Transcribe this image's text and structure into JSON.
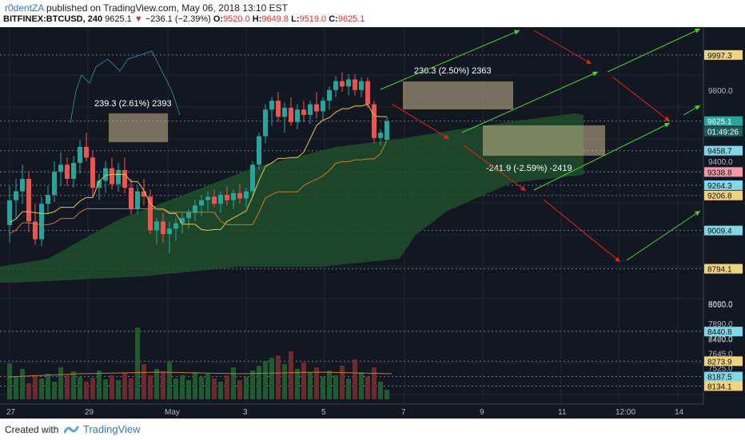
{
  "header": {
    "author": "r0dentZA",
    "published_text": " published on TradingView.com, May 06, 2018 13:10 EST",
    "symbol": "BITFINEX:BTCUSD, 240",
    "last_price": "9625.1",
    "change_arrow": "▼",
    "change": "−236.1 (−2.39%)",
    "o_label": "O:",
    "o_value": "9520.0",
    "h_label": "H:",
    "h_value": "9649.8",
    "l_label": "L:",
    "l_value": "9519.0",
    "c_label": "C:",
    "c_value": "9625.1"
  },
  "footer": {
    "created_with": "Created with",
    "brand": "TradingView",
    "logo_icon": "tradingview-logo-icon"
  },
  "colors": {
    "background": "#131722",
    "up": "#26a69a",
    "down": "#ef5350",
    "cloud": "#1f4d2a",
    "arrow_up": "#4cd137",
    "arrow_down": "#e8231a",
    "box_fill": "#c9b88a",
    "yellow_line": "#e6c84a",
    "orange_line": "#c97d26"
  },
  "chart_data": {
    "type": "candlestick",
    "symbol": "BITFINEX:BTCUSD",
    "interval": "240",
    "x_tick_labels": [
      "27",
      "29",
      "May",
      "3",
      "5",
      "7",
      "9",
      "11",
      "12:00",
      "14"
    ],
    "y_tick_labels": [
      "9800.0",
      "9400.0",
      "8600.0",
      "8400.0",
      "8050.0",
      "7890.0",
      "7770.0",
      "7645.0",
      "7525.0",
      "7405.0"
    ],
    "price_badges": [
      {
        "label": "9997.3",
        "style": "yellow"
      },
      {
        "label": "9625.1",
        "style": "teal"
      },
      {
        "label": "01:49:26",
        "style": "dark-teal"
      },
      {
        "label": "9458.7",
        "style": "cyan"
      },
      {
        "label": "9338.8",
        "style": "pink"
      },
      {
        "label": "9264.3",
        "style": "cyan"
      },
      {
        "label": "9206.8",
        "style": "yellow"
      },
      {
        "label": "9009.4",
        "style": "cyan"
      },
      {
        "label": "8794.1",
        "style": "yellow"
      },
      {
        "label": "8440.8",
        "style": "cyan"
      },
      {
        "label": "8273.9",
        "style": "yellow"
      },
      {
        "label": "8187.5",
        "style": "cyan"
      },
      {
        "label": "8134.1",
        "style": "yellow"
      }
    ],
    "annotations": [
      {
        "text": "239.3 (2.61%) 2393"
      },
      {
        "text": "236.3 (2.50%) 2363"
      },
      {
        "text": "-241.9 (-2.59%) -2419"
      }
    ],
    "candles": [
      {
        "o": 9040,
        "h": 9260,
        "l": 8940,
        "c": 9180
      },
      {
        "o": 9180,
        "h": 9300,
        "l": 9080,
        "c": 9230
      },
      {
        "o": 9230,
        "h": 9380,
        "l": 9160,
        "c": 9300
      },
      {
        "o": 9300,
        "h": 9340,
        "l": 9000,
        "c": 9060
      },
      {
        "o": 9060,
        "h": 9160,
        "l": 8930,
        "c": 8960
      },
      {
        "o": 8960,
        "h": 9200,
        "l": 8920,
        "c": 9160
      },
      {
        "o": 9160,
        "h": 9260,
        "l": 9100,
        "c": 9210
      },
      {
        "o": 9210,
        "h": 9400,
        "l": 9170,
        "c": 9340
      },
      {
        "o": 9340,
        "h": 9450,
        "l": 9260,
        "c": 9380
      },
      {
        "o": 9380,
        "h": 9420,
        "l": 9260,
        "c": 9300
      },
      {
        "o": 9300,
        "h": 9430,
        "l": 9250,
        "c": 9390
      },
      {
        "o": 9390,
        "h": 9520,
        "l": 9330,
        "c": 9480
      },
      {
        "o": 9480,
        "h": 9560,
        "l": 9400,
        "c": 9420
      },
      {
        "o": 9420,
        "h": 9460,
        "l": 9200,
        "c": 9250
      },
      {
        "o": 9250,
        "h": 9330,
        "l": 9180,
        "c": 9290
      },
      {
        "o": 9290,
        "h": 9400,
        "l": 9220,
        "c": 9360
      },
      {
        "o": 9360,
        "h": 9420,
        "l": 9240,
        "c": 9270
      },
      {
        "o": 9270,
        "h": 9390,
        "l": 9230,
        "c": 9350
      },
      {
        "o": 9350,
        "h": 9420,
        "l": 9220,
        "c": 9250
      },
      {
        "o": 9250,
        "h": 9300,
        "l": 9100,
        "c": 9130
      },
      {
        "o": 9130,
        "h": 9260,
        "l": 9100,
        "c": 9230
      },
      {
        "o": 9230,
        "h": 9300,
        "l": 9150,
        "c": 9200
      },
      {
        "o": 9200,
        "h": 9240,
        "l": 8990,
        "c": 9010
      },
      {
        "o": 9010,
        "h": 9080,
        "l": 8930,
        "c": 9060
      },
      {
        "o": 9060,
        "h": 9110,
        "l": 8940,
        "c": 8990
      },
      {
        "o": 8990,
        "h": 9060,
        "l": 8880,
        "c": 9020
      },
      {
        "o": 9020,
        "h": 9080,
        "l": 8950,
        "c": 9050
      },
      {
        "o": 9050,
        "h": 9110,
        "l": 8990,
        "c": 9080
      },
      {
        "o": 9080,
        "h": 9130,
        "l": 9020,
        "c": 9110
      },
      {
        "o": 9110,
        "h": 9180,
        "l": 9060,
        "c": 9150
      },
      {
        "o": 9150,
        "h": 9210,
        "l": 9090,
        "c": 9180
      },
      {
        "o": 9180,
        "h": 9230,
        "l": 9120,
        "c": 9200
      },
      {
        "o": 9200,
        "h": 9240,
        "l": 9140,
        "c": 9160
      },
      {
        "o": 9160,
        "h": 9230,
        "l": 9110,
        "c": 9210
      },
      {
        "o": 9210,
        "h": 9260,
        "l": 9150,
        "c": 9180
      },
      {
        "o": 9180,
        "h": 9240,
        "l": 9130,
        "c": 9220
      },
      {
        "o": 9220,
        "h": 9270,
        "l": 9160,
        "c": 9190
      },
      {
        "o": 9190,
        "h": 9250,
        "l": 9140,
        "c": 9230
      },
      {
        "o": 9230,
        "h": 9400,
        "l": 9200,
        "c": 9380
      },
      {
        "o": 9380,
        "h": 9560,
        "l": 9350,
        "c": 9540
      },
      {
        "o": 9540,
        "h": 9720,
        "l": 9500,
        "c": 9690
      },
      {
        "o": 9690,
        "h": 9760,
        "l": 9600,
        "c": 9740
      },
      {
        "o": 9740,
        "h": 9790,
        "l": 9620,
        "c": 9650
      },
      {
        "o": 9650,
        "h": 9730,
        "l": 9560,
        "c": 9700
      },
      {
        "o": 9700,
        "h": 9760,
        "l": 9600,
        "c": 9620
      },
      {
        "o": 9620,
        "h": 9720,
        "l": 9580,
        "c": 9690
      },
      {
        "o": 9690,
        "h": 9740,
        "l": 9620,
        "c": 9660
      },
      {
        "o": 9660,
        "h": 9740,
        "l": 9610,
        "c": 9720
      },
      {
        "o": 9720,
        "h": 9790,
        "l": 9640,
        "c": 9680
      },
      {
        "o": 9680,
        "h": 9760,
        "l": 9630,
        "c": 9740
      },
      {
        "o": 9740,
        "h": 9820,
        "l": 9690,
        "c": 9800
      },
      {
        "o": 9800,
        "h": 9880,
        "l": 9760,
        "c": 9850
      },
      {
        "o": 9850,
        "h": 9900,
        "l": 9790,
        "c": 9820
      },
      {
        "o": 9820,
        "h": 9890,
        "l": 9770,
        "c": 9860
      },
      {
        "o": 9860,
        "h": 9890,
        "l": 9770,
        "c": 9800
      },
      {
        "o": 9800,
        "h": 9870,
        "l": 9760,
        "c": 9850
      },
      {
        "o": 9850,
        "h": 9870,
        "l": 9700,
        "c": 9720
      },
      {
        "o": 9720,
        "h": 9740,
        "l": 9500,
        "c": 9530
      },
      {
        "o": 9530,
        "h": 9580,
        "l": 9490,
        "c": 9560
      },
      {
        "o": 9520,
        "h": 9650,
        "l": 9519,
        "c": 9625
      }
    ],
    "volume": [
      45,
      28,
      38,
      20,
      30,
      26,
      32,
      22,
      40,
      30,
      35,
      28,
      22,
      27,
      36,
      25,
      30,
      24,
      33,
      26,
      90,
      44,
      30,
      38,
      35,
      48,
      26,
      30,
      24,
      34,
      28,
      32,
      26,
      22,
      30,
      40,
      24,
      28,
      36,
      42,
      48,
      52,
      55,
      44,
      60,
      38,
      46,
      34,
      40,
      28,
      36,
      30,
      42,
      26,
      50,
      34,
      28,
      40,
      22,
      12
    ]
  }
}
